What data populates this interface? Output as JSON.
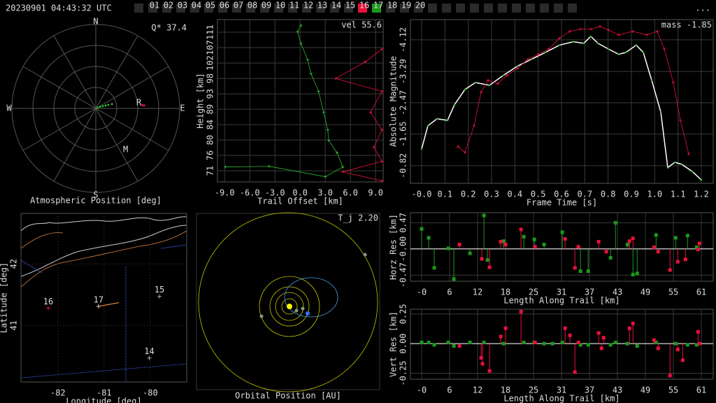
{
  "header": {
    "timestamp": "20230901 04:43:32 UTC",
    "stations": [
      "01",
      "02",
      "03",
      "04",
      "05",
      "06",
      "07",
      "08",
      "09",
      "10",
      "11",
      "12",
      "13",
      "14",
      "15",
      "16",
      "17",
      "18",
      "19",
      "20"
    ],
    "active": [
      "16",
      "17"
    ],
    "active_colors": [
      "#e8103c",
      "#1a9a1a"
    ],
    "menu": "..."
  },
  "chart_data": [
    {
      "type": "polar",
      "title": "Atmospheric Position [deg]",
      "annotation": "Q* 37.4",
      "directions": [
        "N",
        "E",
        "S",
        "W"
      ],
      "rlim": [
        0,
        90
      ],
      "markers": [
        "R",
        "M"
      ],
      "series": [
        {
          "color": "#2db52d",
          "theta": [
            68,
            70,
            72,
            73,
            74,
            75
          ],
          "r": [
            2,
            5,
            8,
            11,
            14,
            18
          ]
        },
        {
          "color": "#e8103c",
          "theta": [
            86,
            86.5
          ],
          "r": [
            50,
            52
          ]
        }
      ]
    },
    {
      "type": "line",
      "xlabel": "Trail Offset [km]",
      "ylabel": "Height [km]",
      "annotation": "vel 55.6",
      "grid": true,
      "xlim": [
        -9.85,
        9.9
      ],
      "ylim": [
        67.9,
        114.7
      ],
      "xticks": [
        {
          "value": -9,
          "label": "-9.0"
        },
        {
          "value": -6,
          "label": "-6.0"
        },
        {
          "value": -3,
          "label": "-3.0"
        },
        {
          "value": 0,
          "label": "0.0"
        },
        {
          "value": 3,
          "label": "3.0"
        },
        {
          "value": 6,
          "label": "6.0"
        },
        {
          "value": 9,
          "label": "9.0"
        }
      ],
      "yticks": [
        {
          "value": 71.1,
          "label": "71"
        },
        {
          "value": 75.54,
          "label": "76"
        },
        {
          "value": 79.98,
          "label": "80"
        },
        {
          "value": 84.42,
          "label": "84"
        },
        {
          "value": 88.86,
          "label": "89"
        },
        {
          "value": 93.3,
          "label": "93"
        },
        {
          "value": 97.74,
          "label": "98"
        },
        {
          "value": 102.18,
          "label": "102"
        },
        {
          "value": 106.62,
          "label": "107"
        },
        {
          "value": 111.06,
          "label": "111"
        }
      ],
      "series": [
        {
          "color": "#2db52d",
          "marker": "plus",
          "x": [
            -8.9,
            -3.7,
            3.0,
            5.1,
            4.4,
            3.4,
            3.3,
            2.8,
            2.2,
            1.3,
            0.9,
            0.1,
            -0.3,
            0.1
          ],
          "values": [
            72.2,
            72.4,
            69.4,
            72.2,
            76.3,
            79.9,
            82.9,
            88.0,
            94.0,
            99.1,
            103.1,
            107.8,
            111.2,
            113.0
          ]
        },
        {
          "color": "#e8103c",
          "marker": "plus",
          "x": [
            9.75,
            7.75,
            4.25,
            9.75,
            8.4,
            9.75,
            8.8,
            9.75,
            5.1,
            9.75
          ],
          "values": [
            106.2,
            102.5,
            97.7,
            94.0,
            88.0,
            82.9,
            77.9,
            73.8,
            70.8,
            68.2
          ]
        }
      ]
    },
    {
      "type": "line",
      "xlabel": "Frame Time [s]",
      "ylabel": "Absolute Magnitude",
      "annotation": "mass -1.85",
      "grid": true,
      "xlim": [
        -0.048,
        1.251
      ],
      "ylim": [
        -0.36,
        -4.65
      ],
      "xticks": [
        {
          "value": 0,
          "label": "-0.0"
        },
        0.1,
        0.2,
        0.3,
        0.4,
        0.5,
        0.6,
        0.7,
        0.8,
        0.9,
        {
          "value": 1,
          "label": "1.0"
        },
        1.1,
        1.2
      ],
      "yticks": [
        -0.82,
        -1.65,
        -2.47,
        -3.29,
        -4.12
      ],
      "series": [
        {
          "color": "#2db52d",
          "line_color": "#ffffff",
          "marker": "dot",
          "x": [
            0.0,
            0.027,
            0.066,
            0.111,
            0.141,
            0.186,
            0.231,
            0.291,
            0.351,
            0.411,
            0.471,
            0.531,
            0.591,
            0.651,
            0.696,
            0.726,
            0.756,
            0.801,
            0.846,
            0.876,
            0.921,
            0.951,
            0.987,
            1.026,
            1.056,
            1.086,
            1.116,
            1.161,
            1.2
          ],
          "values": [
            -1.26,
            -1.87,
            -2.05,
            -2.01,
            -2.42,
            -2.82,
            -3.0,
            -2.93,
            -3.19,
            -3.43,
            -3.61,
            -3.79,
            -3.98,
            -4.07,
            -4.03,
            -4.21,
            -4.03,
            -3.88,
            -3.74,
            -3.79,
            -3.98,
            -3.79,
            -3.06,
            -2.23,
            -0.77,
            -0.91,
            -0.86,
            -0.67,
            -0.45
          ]
        },
        {
          "color": "#e8103c",
          "marker": "plus",
          "x": [
            0.156,
            0.186,
            0.225,
            0.255,
            0.285,
            0.327,
            0.366,
            0.411,
            0.456,
            0.501,
            0.546,
            0.591,
            0.636,
            0.681,
            0.726,
            0.765,
            0.801,
            0.846,
            0.906,
            0.966,
            1.011,
            1.041,
            1.08,
            1.11,
            1.146
          ],
          "values": [
            -1.32,
            -1.17,
            -1.87,
            -2.75,
            -3.06,
            -2.97,
            -3.19,
            -3.37,
            -3.61,
            -3.74,
            -3.88,
            -4.16,
            -4.34,
            -4.4,
            -4.4,
            -4.47,
            -4.38,
            -4.25,
            -4.34,
            -4.25,
            -4.34,
            -3.88,
            -3.0,
            -2.01,
            -1.13
          ]
        }
      ]
    },
    {
      "type": "map",
      "xlabel": "Longitude [deg]",
      "ylabel": "Latitude [deg]",
      "xlim": [
        -82.8,
        -79.21
      ],
      "ylim": [
        40.08,
        42.82
      ],
      "xticks": [
        -82,
        -81,
        -80
      ],
      "yticks": [
        41,
        42
      ],
      "stations": {
        "labels": [
          "16",
          "17",
          "15",
          "14"
        ],
        "colors": [
          "#e8103c",
          "#dddddd",
          "#aaaaaa",
          "#aaaaaa"
        ],
        "x": [
          -82.21,
          -81.12,
          -79.8,
          -80.02
        ],
        "values": [
          41.28,
          41.31,
          41.47,
          40.47
        ]
      },
      "track": {
        "color": "#f09040",
        "x": [
          -81.12,
          -80.68
        ],
        "values": [
          41.31,
          41.37
        ]
      }
    },
    {
      "type": "orbit",
      "title": "Orbital Position [AU]",
      "annotation": "T_j 2.20"
    },
    {
      "type": "stem",
      "xlabel": "Length Along Trail [km]",
      "ylabel": "Horz Res [km]",
      "grid": true,
      "xlim": [
        -2.46,
        64.0
      ],
      "ylim": [
        -0.58,
        0.65
      ],
      "xticks": [
        {
          "value": 0,
          "label": "-0"
        },
        {
          "value": 6.14,
          "label": "6"
        },
        {
          "value": 12.28,
          "label": "12"
        },
        {
          "value": 18.42,
          "label": "18"
        },
        {
          "value": 24.56,
          "label": "25"
        },
        {
          "value": 30.7,
          "label": "31"
        },
        {
          "value": 36.84,
          "label": "37"
        },
        {
          "value": 42.98,
          "label": "43"
        },
        {
          "value": 49.12,
          "label": "49"
        },
        {
          "value": 55.26,
          "label": "55"
        },
        {
          "value": 61.4,
          "label": "61"
        }
      ],
      "yticks": [
        -0.47,
        {
          "value": 0,
          "label": "-0.00"
        },
        0.47
      ],
      "series": [
        {
          "color": "#1a9a1a",
          "x": [
            0.0,
            1.54,
            2.76,
            5.84,
            7.07,
            10.6,
            13.67,
            14.44,
            17.97,
            22.43,
            24.73,
            26.88,
            30.88,
            34.87,
            36.56,
            41.47,
            42.55,
            45.16,
            46.39,
            47.31,
            51.46,
            55.76,
            58.37,
            60.37
          ],
          "values": [
            0.36,
            0.2,
            -0.34,
            0.01,
            -0.54,
            -0.08,
            0.6,
            -0.2,
            0.14,
            0.22,
            0.17,
            0.08,
            0.3,
            -0.4,
            -0.4,
            -0.16,
            0.47,
            0.08,
            -0.46,
            -0.44,
            0.25,
            0.2,
            0.24,
            0.03
          ]
        },
        {
          "color": "#e8103c",
          "x": [
            8.29,
            13.21,
            14.9,
            17.36,
            18.43,
            21.81,
            24.88,
            31.49,
            33.64,
            34.41,
            38.86,
            40.55,
            45.62,
            46.39,
            51.0,
            51.92,
            54.53,
            56.22,
            57.91,
            60.68,
            60.98
          ],
          "values": [
            0.08,
            -0.18,
            -0.33,
            0.13,
            0.08,
            0.35,
            0.04,
            0.18,
            -0.34,
            0.04,
            0.13,
            -0.05,
            0.14,
            0.19,
            0.03,
            -0.05,
            -0.38,
            -0.23,
            -0.19,
            -0.01,
            0.1
          ]
        }
      ]
    },
    {
      "type": "stem",
      "xlabel": "Length Along Trail [km]",
      "ylabel": "Vert Res [km]",
      "grid": true,
      "xlim": [
        -2.46,
        64.0
      ],
      "ylim": [
        -0.3,
        0.29
      ],
      "xticks": [
        {
          "value": 0,
          "label": "-0"
        },
        {
          "value": 6.14,
          "label": "6"
        },
        {
          "value": 12.28,
          "label": "12"
        },
        {
          "value": 18.42,
          "label": "18"
        },
        {
          "value": 24.56,
          "label": "25"
        },
        {
          "value": 30.7,
          "label": "31"
        },
        {
          "value": 36.84,
          "label": "37"
        },
        {
          "value": 42.98,
          "label": "43"
        },
        {
          "value": 49.12,
          "label": "49"
        },
        {
          "value": 55.26,
          "label": "55"
        },
        {
          "value": 61.4,
          "label": "61"
        }
      ],
      "yticks": [
        -0.25,
        {
          "value": 0,
          "label": "0.00"
        },
        0.25
      ],
      "series": [
        {
          "color": "#1a9a1a",
          "x": [
            0,
            1.54,
            2.76,
            5.84,
            7.07,
            10.6,
            13.67,
            17.97,
            22.43,
            24.73,
            26.88,
            28.72,
            30.88,
            34.87,
            36.56,
            41.47,
            42.55,
            45.16,
            47.31,
            51.46,
            55.76,
            58.37,
            60.37
          ],
          "values": [
            0.01,
            0.01,
            -0.01,
            0.01,
            -0.02,
            0.01,
            0.01,
            0,
            0.01,
            0.01,
            0,
            0,
            0.01,
            -0.01,
            -0.01,
            -0.01,
            0.01,
            0,
            -0.02,
            0.01,
            0,
            -0.01,
            -0.01
          ]
        },
        {
          "color": "#e8103c",
          "x": [
            8.29,
            13.06,
            13.36,
            14.9,
            17.36,
            18.43,
            21.81,
            24.88,
            31.49,
            32.57,
            33.64,
            34.41,
            38.86,
            39.48,
            39.94,
            45.62,
            46.39,
            51.0,
            51.92,
            54.53,
            56.22,
            57.3,
            60.68,
            60.98
          ],
          "values": [
            -0.02,
            -0.12,
            -0.17,
            -0.23,
            0.06,
            0.13,
            0.27,
            0.01,
            0.13,
            0.07,
            -0.24,
            0.01,
            0.09,
            -0.04,
            0.05,
            0.13,
            0.17,
            0.03,
            -0.04,
            -0.27,
            -0.05,
            -0.14,
            0.1,
            0
          ]
        }
      ]
    }
  ]
}
